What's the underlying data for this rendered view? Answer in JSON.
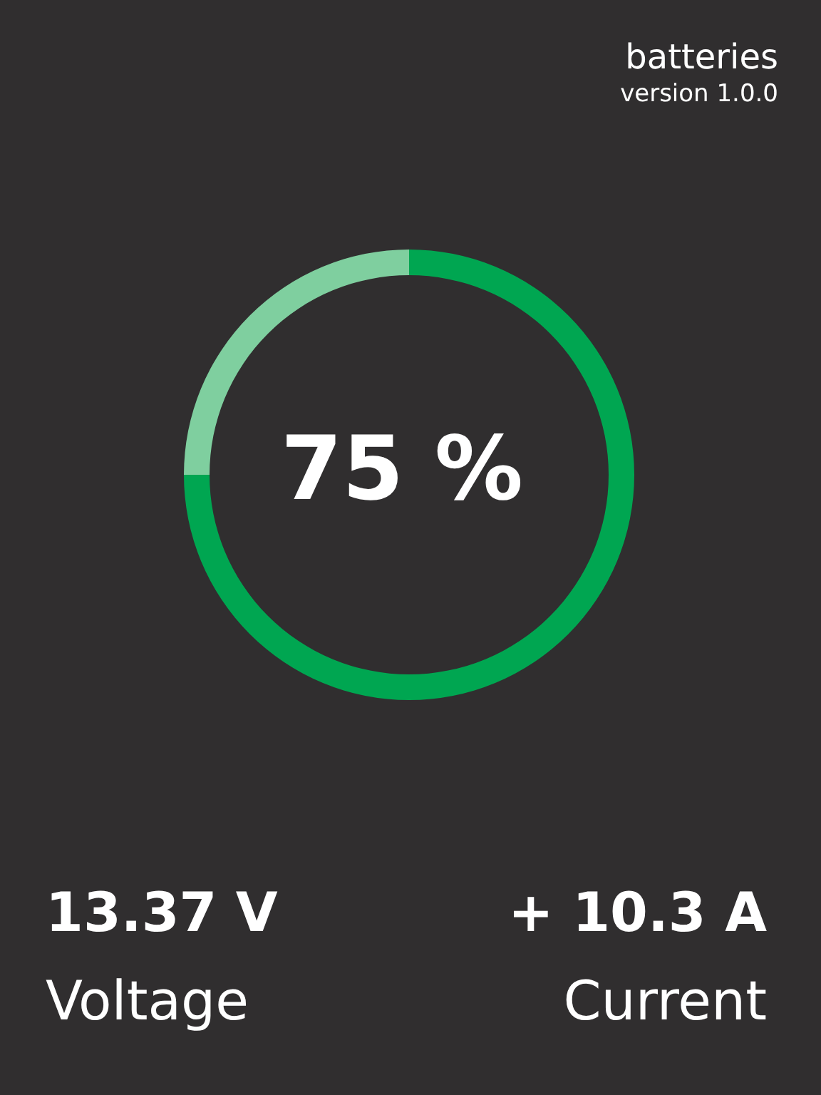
{
  "chart_data": {
    "type": "donut",
    "title": "batteries",
    "subtitle": "version 1.0.0",
    "categories": [
      null,
      null
    ],
    "values": [
      75,
      25
    ],
    "colors": [
      "#00a651",
      "#7fcf9f"
    ],
    "annotations": [
      "75 %",
      "13.37 V",
      "Voltage",
      "+ 10.3 A",
      "Current"
    ]
  }
}
